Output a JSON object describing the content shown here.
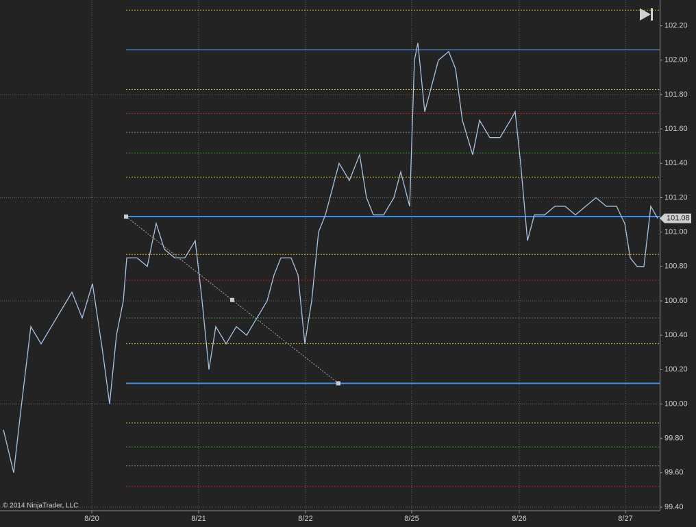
{
  "chart_data": {
    "type": "line",
    "copyright": "© 2014 NinjaTrader, LLC",
    "xlim": [
      0,
      963
    ],
    "xticks": [
      {
        "value": 134,
        "label": "8/20"
      },
      {
        "value": 290,
        "label": "8/21"
      },
      {
        "value": 446,
        "label": "8/22"
      },
      {
        "value": 601,
        "label": "8/25"
      },
      {
        "value": 758,
        "label": "8/26"
      },
      {
        "value": 913,
        "label": "8/27"
      }
    ],
    "ylim": [
      99.38,
      102.35
    ],
    "yticks": [
      {
        "value": 99.4,
        "label": "99.40"
      },
      {
        "value": 99.6,
        "label": "99.60"
      },
      {
        "value": 99.8,
        "label": "99.80"
      },
      {
        "value": 100.0,
        "label": "100.00"
      },
      {
        "value": 100.2,
        "label": "100.20"
      },
      {
        "value": 100.4,
        "label": "100.40"
      },
      {
        "value": 100.6,
        "label": "100.60"
      },
      {
        "value": 100.8,
        "label": "100.80"
      },
      {
        "value": 101.0,
        "label": "101.00"
      },
      {
        "value": 101.2,
        "label": "101.20"
      },
      {
        "value": 101.4,
        "label": "101.40"
      },
      {
        "value": 101.6,
        "label": "101.60"
      },
      {
        "value": 101.8,
        "label": "101.80"
      },
      {
        "value": 102.0,
        "label": "102.00"
      },
      {
        "value": 102.2,
        "label": "102.20"
      }
    ],
    "hgrid": [
      99.4,
      100.0,
      100.6,
      101.2,
      101.8
    ],
    "grid": true,
    "series": [
      {
        "color": "#a9c4e0",
        "x": [
          5,
          20,
          30,
          45,
          60,
          75,
          90,
          105,
          120,
          135,
          150,
          160,
          170,
          180,
          185,
          200,
          215,
          228,
          240,
          255,
          270,
          285,
          295,
          305,
          315,
          330,
          345,
          360,
          375,
          390,
          400,
          410,
          425,
          435,
          445,
          455,
          465,
          475,
          485,
          495,
          510,
          525,
          535,
          545,
          560,
          575,
          585,
          598,
          605,
          610,
          620,
          630,
          640,
          655,
          665,
          675,
          690,
          700,
          715,
          730,
          745,
          752,
          760,
          770,
          780,
          795,
          810,
          825,
          840,
          855,
          870,
          885,
          900,
          912,
          920,
          930,
          940,
          950,
          960
        ],
        "values": [
          99.85,
          99.6,
          99.95,
          100.45,
          100.35,
          100.45,
          100.55,
          100.65,
          100.5,
          100.7,
          100.3,
          100.0,
          100.4,
          100.6,
          100.85,
          100.85,
          100.8,
          101.05,
          100.9,
          100.85,
          100.85,
          100.95,
          100.6,
          100.2,
          100.45,
          100.35,
          100.45,
          100.4,
          100.5,
          100.6,
          100.75,
          100.85,
          100.85,
          100.75,
          100.35,
          100.6,
          101.0,
          101.1,
          101.25,
          101.4,
          101.3,
          101.45,
          101.2,
          101.1,
          101.1,
          101.2,
          101.35,
          101.15,
          102.0,
          102.1,
          101.7,
          101.85,
          102.0,
          102.05,
          101.95,
          101.65,
          101.45,
          101.65,
          101.55,
          101.55,
          101.65,
          101.7,
          101.4,
          100.95,
          101.1,
          101.1,
          101.15,
          101.15,
          101.1,
          101.15,
          101.2,
          101.15,
          101.15,
          101.05,
          100.85,
          100.8,
          100.8,
          101.15,
          101.08
        ]
      }
    ],
    "levels": [
      {
        "value": 102.29,
        "color": "#d8c020",
        "style": "dotted"
      },
      {
        "value": 102.06,
        "color": "#3a8ee6",
        "style": "solid"
      },
      {
        "value": 101.83,
        "color": "#d8c020",
        "style": "dotted"
      },
      {
        "value": 101.69,
        "color": "#c02020",
        "style": "dotted"
      },
      {
        "value": 101.58,
        "color": "#888888",
        "style": "dotted"
      },
      {
        "value": 101.46,
        "color": "#2a9a2a",
        "style": "dotted"
      },
      {
        "value": 101.32,
        "color": "#d8c020",
        "style": "dotted"
      },
      {
        "value": 101.09,
        "color": "#3a8ee6",
        "style": "bold"
      },
      {
        "value": 100.87,
        "color": "#d8c020",
        "style": "dotted"
      },
      {
        "value": 100.72,
        "color": "#c02020",
        "style": "dotted"
      },
      {
        "value": 100.5,
        "color": "#2a9a2a",
        "style": "dotted"
      },
      {
        "value": 100.35,
        "color": "#d8c020",
        "style": "dotted"
      },
      {
        "value": 100.12,
        "color": "#3a8ee6",
        "style": "bold"
      },
      {
        "value": 99.89,
        "color": "#d8c020",
        "style": "dotted"
      },
      {
        "value": 99.75,
        "color": "#2a9a2a",
        "style": "dotted"
      },
      {
        "value": 99.64,
        "color": "#888888",
        "style": "dotted"
      },
      {
        "value": 99.52,
        "color": "#c02020",
        "style": "dotted"
      }
    ],
    "levels_start": 184,
    "trend_line": {
      "x": [
        184,
        494
      ],
      "values": [
        101.09,
        100.12
      ]
    },
    "last_price": 101.08
  }
}
